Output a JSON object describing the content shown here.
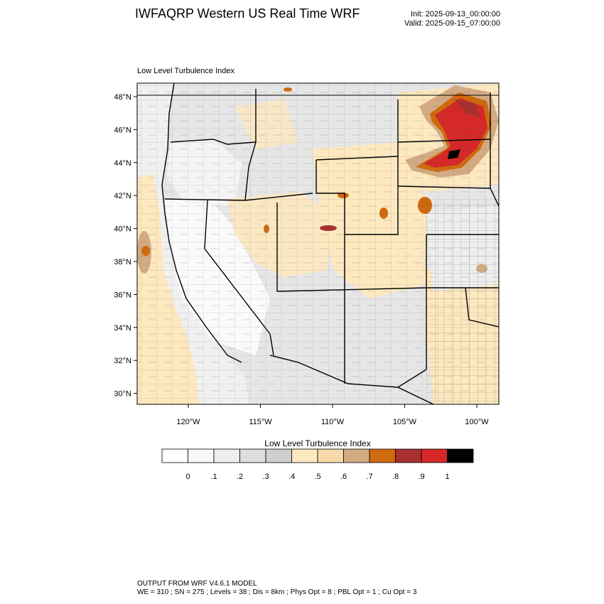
{
  "header": {
    "title": "IWFAQRP Western US Real Time WRF",
    "init": "Init: 2025-09-13_00:00:00",
    "valid": "Valid: 2025-09-15_07:00:00"
  },
  "map": {
    "subtitle": "Low Level Turbulence Index",
    "lat_labels": [
      "48°N",
      "46°N",
      "44°N",
      "42°N",
      "40°N",
      "38°N",
      "36°N",
      "34°N",
      "32°N",
      "30°N"
    ],
    "lon_labels": [
      "120°W",
      "115°W",
      "110°W",
      "105°W",
      "100°W"
    ]
  },
  "colorbar": {
    "title": "Low Level Turbulence Index",
    "colors": [
      "#ffffff",
      "#f8f8f8",
      "#eeeeee",
      "#dedede",
      "#cfcfcf",
      "#fde8bf",
      "#f7d9a9",
      "#d3ab83",
      "#d06a0e",
      "#a83030",
      "#d62828",
      "#000000"
    ],
    "labels": [
      "0",
      ".1",
      ".2",
      ".3",
      ".4",
      ".5",
      ".6",
      ".7",
      ".8",
      ".9",
      "1"
    ]
  },
  "footer": {
    "line1": "OUTPUT FROM WRF V4.6.1 MODEL",
    "line2": "WE = 310 ; SN = 275 ; Levels = 38 ; Dis = 8km ; Phys Opt = 8 ; PBL Opt = 1 ; Cu Opt = 3"
  }
}
